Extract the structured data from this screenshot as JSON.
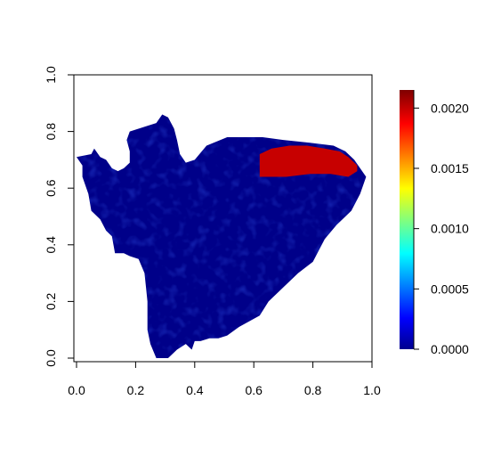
{
  "chart_data": {
    "type": "heatmap",
    "title": "",
    "xlabel": "",
    "ylabel": "",
    "xlim": [
      0,
      1
    ],
    "ylim": [
      0,
      1
    ],
    "x_ticks": [
      "0.0",
      "0.2",
      "0.4",
      "0.6",
      "0.8",
      "1.0"
    ],
    "y_ticks": [
      "0.0",
      "0.2",
      "0.4",
      "0.6",
      "0.8",
      "1.0"
    ],
    "grid": false,
    "colorbar": {
      "range": [
        0,
        0.00215
      ],
      "colormap": "jet",
      "ticks": [
        "0.0000",
        "0.0005",
        "0.0010",
        "0.0015",
        "0.0020"
      ]
    },
    "region_outline": [
      [
        0.0,
        0.71
      ],
      [
        0.05,
        0.72
      ],
      [
        0.06,
        0.74
      ],
      [
        0.08,
        0.71
      ],
      [
        0.1,
        0.7
      ],
      [
        0.12,
        0.67
      ],
      [
        0.14,
        0.66
      ],
      [
        0.16,
        0.67
      ],
      [
        0.18,
        0.69
      ],
      [
        0.18,
        0.73
      ],
      [
        0.17,
        0.77
      ],
      [
        0.18,
        0.8
      ],
      [
        0.24,
        0.82
      ],
      [
        0.27,
        0.83
      ],
      [
        0.29,
        0.86
      ],
      [
        0.31,
        0.85
      ],
      [
        0.33,
        0.81
      ],
      [
        0.34,
        0.77
      ],
      [
        0.35,
        0.72
      ],
      [
        0.37,
        0.69
      ],
      [
        0.4,
        0.7
      ],
      [
        0.44,
        0.75
      ],
      [
        0.51,
        0.78
      ],
      [
        0.57,
        0.78
      ],
      [
        0.63,
        0.78
      ],
      [
        0.7,
        0.77
      ],
      [
        0.79,
        0.76
      ],
      [
        0.87,
        0.75
      ],
      [
        0.91,
        0.73
      ],
      [
        0.94,
        0.7
      ],
      [
        0.96,
        0.67
      ],
      [
        0.98,
        0.64
      ],
      [
        0.96,
        0.58
      ],
      [
        0.93,
        0.52
      ],
      [
        0.88,
        0.47
      ],
      [
        0.84,
        0.42
      ],
      [
        0.8,
        0.34
      ],
      [
        0.75,
        0.3
      ],
      [
        0.7,
        0.25
      ],
      [
        0.65,
        0.2
      ],
      [
        0.62,
        0.15
      ],
      [
        0.55,
        0.11
      ],
      [
        0.51,
        0.08
      ],
      [
        0.48,
        0.07
      ],
      [
        0.45,
        0.07
      ],
      [
        0.42,
        0.06
      ],
      [
        0.4,
        0.06
      ],
      [
        0.39,
        0.03
      ],
      [
        0.37,
        0.05
      ],
      [
        0.34,
        0.03
      ],
      [
        0.31,
        0.0
      ],
      [
        0.27,
        0.0
      ],
      [
        0.25,
        0.05
      ],
      [
        0.24,
        0.1
      ],
      [
        0.24,
        0.2
      ],
      [
        0.23,
        0.3
      ],
      [
        0.21,
        0.35
      ],
      [
        0.18,
        0.36
      ],
      [
        0.16,
        0.37
      ],
      [
        0.13,
        0.37
      ],
      [
        0.12,
        0.43
      ],
      [
        0.1,
        0.45
      ],
      [
        0.08,
        0.49
      ],
      [
        0.05,
        0.52
      ],
      [
        0.04,
        0.58
      ],
      [
        0.02,
        0.64
      ],
      [
        0.02,
        0.68
      ]
    ],
    "hotspot": {
      "value": 0.002,
      "outline": [
        [
          0.62,
          0.72
        ],
        [
          0.66,
          0.74
        ],
        [
          0.72,
          0.75
        ],
        [
          0.78,
          0.75
        ],
        [
          0.84,
          0.74
        ],
        [
          0.89,
          0.73
        ],
        [
          0.92,
          0.71
        ],
        [
          0.95,
          0.68
        ],
        [
          0.95,
          0.66
        ],
        [
          0.92,
          0.64
        ],
        [
          0.86,
          0.65
        ],
        [
          0.79,
          0.65
        ],
        [
          0.71,
          0.64
        ],
        [
          0.65,
          0.64
        ],
        [
          0.62,
          0.64
        ]
      ]
    },
    "background_level": 2e-05
  }
}
